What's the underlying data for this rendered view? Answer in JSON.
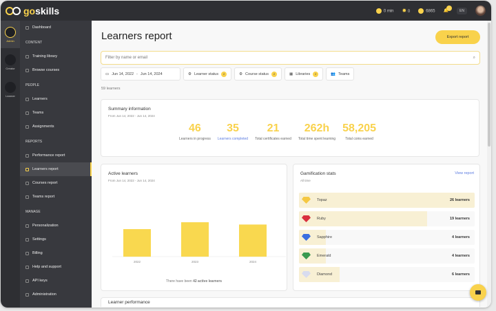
{
  "app": {
    "logo": "goskills"
  },
  "topbar": {
    "time": "0 min",
    "streak": "0",
    "coins": "6865",
    "notifications": "8",
    "language": "EN"
  },
  "rail": [
    {
      "label": "Admin"
    },
    {
      "label": "Creator"
    },
    {
      "label": "Learner"
    }
  ],
  "sidebar": {
    "items": [
      {
        "type": "item",
        "label": "Dashboard"
      },
      {
        "type": "header",
        "label": "CONTENT"
      },
      {
        "type": "item",
        "label": "Training library"
      },
      {
        "type": "item",
        "label": "Browse courses"
      },
      {
        "type": "header",
        "label": "PEOPLE"
      },
      {
        "type": "item",
        "label": "Learners"
      },
      {
        "type": "item",
        "label": "Teams"
      },
      {
        "type": "item",
        "label": "Assignments"
      },
      {
        "type": "header",
        "label": "REPORTS"
      },
      {
        "type": "item",
        "label": "Performance report"
      },
      {
        "type": "item",
        "label": "Learners report",
        "active": true
      },
      {
        "type": "item",
        "label": "Courses report"
      },
      {
        "type": "item",
        "label": "Teams report"
      },
      {
        "type": "header",
        "label": "MANAGE"
      },
      {
        "type": "item",
        "label": "Personalization"
      },
      {
        "type": "item",
        "label": "Settings"
      },
      {
        "type": "item",
        "label": "Billing"
      },
      {
        "type": "item",
        "label": "Help and support"
      },
      {
        "type": "item",
        "label": "API keys"
      },
      {
        "type": "item",
        "label": "Administration"
      }
    ]
  },
  "main": {
    "title": "Learners report",
    "export_label": "Export report",
    "search_placeholder": "Filter by name or email",
    "filters": {
      "date_from": "Jun 14, 2022",
      "date_to": "Jun 14, 2024",
      "learner_status": "Learner status",
      "learner_status_count": "2",
      "course_status": "Course status",
      "course_status_count": "2",
      "libraries": "Libraries",
      "libraries_count": "2",
      "teams": "Teams"
    },
    "count": "59 learners",
    "summary": {
      "title": "Summary information",
      "subtitle": "From Jun 14, 2022 - Jun 14, 2024",
      "stats": [
        {
          "value": "46",
          "label": "Learners in progress"
        },
        {
          "value": "35",
          "label": "Learners completed"
        },
        {
          "value": "21",
          "label": "Total certificates earned"
        },
        {
          "value": "262h",
          "label": "Total time spent learning"
        },
        {
          "value": "58,205",
          "label": "Total coins earned"
        }
      ]
    },
    "active": {
      "title": "Active learners",
      "subtitle": "From Jun 14, 2022 - Jun 14, 2024",
      "footer_prefix": "There have been ",
      "footer_bold": "42 active learners"
    },
    "gamification": {
      "title": "Gamification stats",
      "subtitle": "All time",
      "link": "View report",
      "gems": [
        {
          "name": "Topaz",
          "count": 26,
          "label": "26 learners",
          "color": "#f5c842"
        },
        {
          "name": "Ruby",
          "count": 19,
          "label": "19 learners",
          "color": "#d9303e"
        },
        {
          "name": "Sapphire",
          "count": 4,
          "label": "4 learners",
          "color": "#3b6fe0"
        },
        {
          "name": "Emerald",
          "count": 4,
          "label": "4 learners",
          "color": "#3a9a50"
        },
        {
          "name": "Diamond",
          "count": 6,
          "label": "6 learners",
          "color": "#d8dcef"
        }
      ]
    },
    "performance": {
      "title": "Learner performance"
    }
  },
  "chart_data": {
    "type": "bar",
    "categories": [
      "2022",
      "2023",
      "2024"
    ],
    "values": [
      24,
      30,
      28
    ],
    "color": "#f9d84f",
    "grid": false
  }
}
